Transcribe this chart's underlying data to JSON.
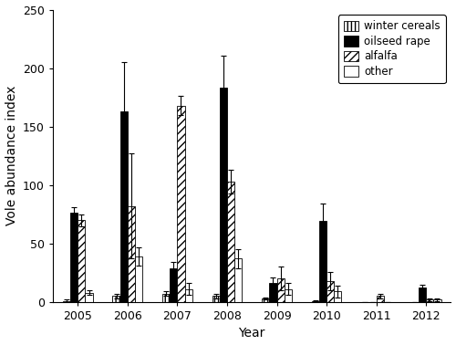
{
  "years": [
    2005,
    2006,
    2007,
    2008,
    2009,
    2010,
    2011,
    2012
  ],
  "winter_cereals": [
    1,
    5,
    7,
    5,
    3,
    1,
    0,
    0
  ],
  "winter_cereals_err": [
    1,
    2,
    2,
    2,
    1,
    0.5,
    0,
    0
  ],
  "oilseed_rape": [
    76,
    163,
    29,
    183,
    16,
    69,
    0,
    12
  ],
  "oilseed_rape_err": [
    5,
    42,
    5,
    28,
    5,
    15,
    0,
    3
  ],
  "alfalfa": [
    70,
    82,
    168,
    103,
    20,
    18,
    5,
    2
  ],
  "alfalfa_err": [
    5,
    45,
    8,
    10,
    10,
    8,
    2,
    1
  ],
  "other": [
    8,
    39,
    11,
    37,
    11,
    9,
    0,
    2
  ],
  "other_err": [
    2,
    8,
    5,
    8,
    5,
    5,
    0,
    1
  ],
  "ylim": [
    0,
    250
  ],
  "ylabel": "Vole abundance index",
  "xlabel": "Year",
  "legend_labels": [
    "winter cereals",
    "oilseed rape",
    "alfalfa",
    "other"
  ],
  "bar_width": 0.15,
  "background_color": "#ffffff"
}
